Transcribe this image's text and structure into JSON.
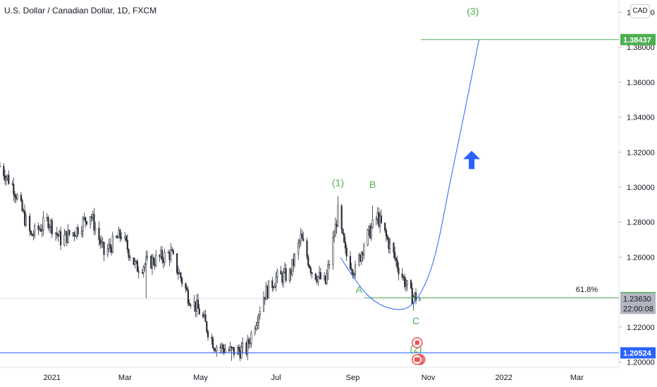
{
  "header": {
    "symbol_title": "U.S. Dollar / Canadian Dollar, 1D, FXCM",
    "currency_label": "CAD"
  },
  "chart_data": {
    "type": "candlestick",
    "y_axis": {
      "ticks": [
        "1.40000",
        "1.38000",
        "1.36000",
        "1.34000",
        "1.32000",
        "1.30000",
        "1.28000",
        "1.26000",
        "1.22000",
        "1.20000"
      ],
      "range": [
        1.197,
        1.407
      ]
    },
    "x_axis": {
      "ticks": [
        "2021",
        "Mar",
        "May",
        "Jul",
        "Sep",
        "Nov",
        "2022",
        "Mar"
      ],
      "ticks_dates": [
        "2021-01-01",
        "2021-03-01",
        "2021-05-01",
        "2021-07-01",
        "2021-09-01",
        "2021-11-01",
        "2022-01-01",
        "2022-03-01"
      ],
      "range": [
        "2020-11-20",
        "2022-04-04"
      ]
    },
    "price_path": [
      [
        "2020-11-20",
        1.312
      ],
      [
        "2020-12-01",
        1.3
      ],
      [
        "2020-12-15",
        1.272
      ],
      [
        "2020-12-29",
        1.281
      ],
      [
        "2021-01-08",
        1.27
      ],
      [
        "2021-01-20",
        1.275
      ],
      [
        "2021-02-01",
        1.285
      ],
      [
        "2021-02-12",
        1.262
      ],
      [
        "2021-02-26",
        1.273
      ],
      [
        "2021-03-10",
        1.254
      ],
      [
        "2021-03-24",
        1.258
      ],
      [
        "2021-04-07",
        1.262
      ],
      [
        "2021-04-21",
        1.238
      ],
      [
        "2021-05-01",
        1.228
      ],
      [
        "2021-05-12",
        1.21
      ],
      [
        "2021-05-26",
        1.206
      ],
      [
        "2021-06-07",
        1.207
      ],
      [
        "2021-06-21",
        1.238
      ],
      [
        "2021-07-01",
        1.248
      ],
      [
        "2021-07-12",
        1.25
      ],
      [
        "2021-07-21",
        1.271
      ],
      [
        "2021-07-30",
        1.252
      ],
      [
        "2021-08-10",
        1.245
      ],
      [
        "2021-08-20",
        1.285
      ],
      [
        "2021-08-26",
        1.262
      ],
      [
        "2021-09-03",
        1.252
      ],
      [
        "2021-09-10",
        1.268
      ],
      [
        "2021-09-21",
        1.283
      ],
      [
        "2021-09-30",
        1.268
      ],
      [
        "2021-10-08",
        1.254
      ],
      [
        "2021-10-18",
        1.238
      ],
      [
        "2021-10-25",
        1.2363
      ]
    ],
    "horizontal_levels": [
      {
        "price": 1.38437,
        "label": "1.38437",
        "color": "#4caf50"
      },
      {
        "price": 1.23681,
        "label": "1.23681",
        "color": "#4caf50",
        "annotation": "61.8%"
      },
      {
        "price": 1.20524,
        "label": "1.20524",
        "color": "#2962ff"
      }
    ],
    "current_price": {
      "label": "1.23630",
      "countdown": "22:00:08"
    },
    "wave_labels": [
      {
        "text": "(1)",
        "date": "2021-08-20",
        "price": 1.3006
      },
      {
        "text": "B",
        "date": "2021-09-17",
        "price": 1.2995
      },
      {
        "text": "A",
        "date": "2021-09-06",
        "price": 1.2394
      },
      {
        "text": "C",
        "date": "2021-10-22",
        "price": 1.2215
      },
      {
        "text": "(2)",
        "date": "2021-10-22",
        "price": 1.2057
      },
      {
        "text": "(3)",
        "date": "2021-12-07",
        "price": 1.3985
      }
    ],
    "projection_curve": [
      [
        "2021-08-22",
        1.2597
      ],
      [
        "2021-09-12",
        1.239
      ],
      [
        "2021-10-02",
        1.2306
      ],
      [
        "2021-10-20",
        1.2338
      ],
      [
        "2021-11-05",
        1.2574
      ],
      [
        "2021-11-20",
        1.3076
      ],
      [
        "2021-12-01",
        1.3455
      ],
      [
        "2021-12-12",
        1.3844
      ]
    ],
    "arrow": {
      "direction": "up",
      "date": "2021-12-06",
      "price": 1.316,
      "color": "#2962ff"
    },
    "colors": {
      "up": "#26a69a",
      "down": "#ef5350",
      "candle": "#2a2e39",
      "level_green": "#4caf50",
      "level_blue": "#2962ff",
      "price_box": "#b2b5be"
    }
  }
}
